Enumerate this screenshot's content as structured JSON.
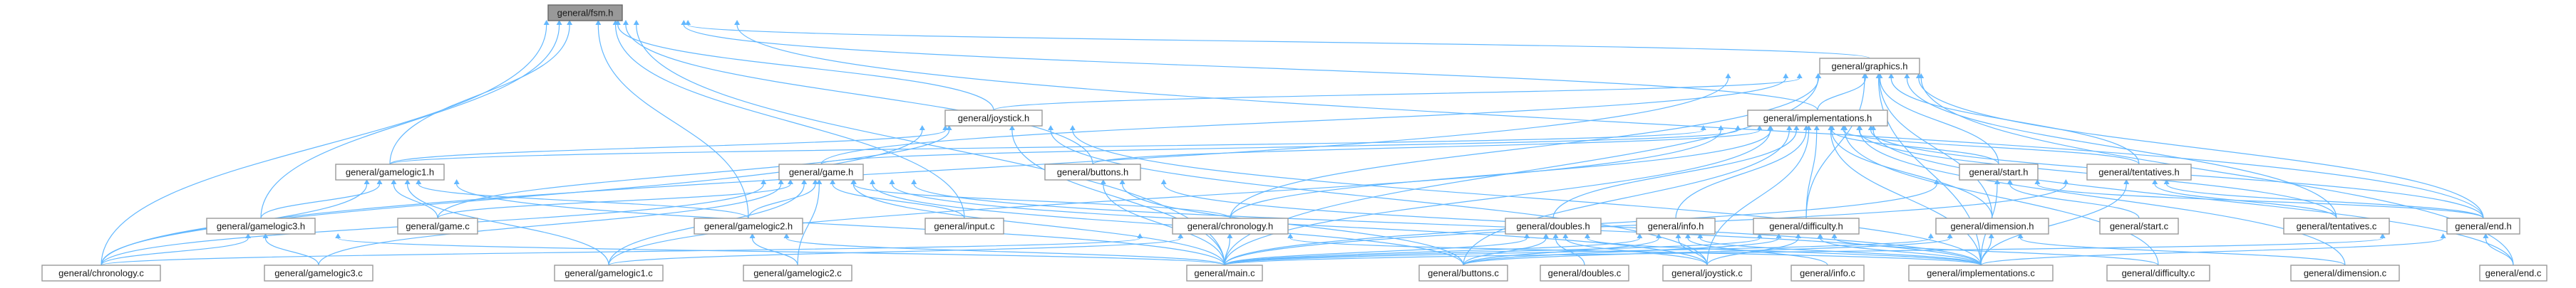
{
  "nodes": {
    "fsm_h": "general/fsm.h",
    "graphics_h": "general/graphics.h",
    "joystick_h": "general/joystick.h",
    "implementations_h": "general/implementations.h",
    "gamelogic1_h": "general/gamelogic1.h",
    "game_h": "general/game.h",
    "buttons_h": "general/buttons.h",
    "start_h": "general/start.h",
    "tentatives_h": "general/tentatives.h",
    "gamelogic3_h": "general/gamelogic3.h",
    "game_c": "general/game.c",
    "gamelogic2_h": "general/gamelogic2.h",
    "input_c": "general/input.c",
    "chronology_h": "general/chronology.h",
    "doubles_h": "general/doubles.h",
    "info_h": "general/info.h",
    "difficulty_h": "general/difficulty.h",
    "dimension_h": "general/dimension.h",
    "start_c": "general/start.c",
    "tentatives_c": "general/tentatives.c",
    "end_h": "general/end.h",
    "chronology_c": "general/chronology.c",
    "gamelogic3_c": "general/gamelogic3.c",
    "gamelogic1_c": "general/gamelogic1.c",
    "gamelogic2_c": "general/gamelogic2.c",
    "main_c": "general/main.c",
    "buttons_c": "general/buttons.c",
    "doubles_c": "general/doubles.c",
    "joystick_c": "general/joystick.c",
    "info_c": "general/info.c",
    "implementations_c": "general/implementations.c",
    "difficulty_c": "general/difficulty.c",
    "dimension_c": "general/dimension.c",
    "end_c": "general/end.c"
  },
  "edges": [
    [
      "graphics_h",
      "fsm_h"
    ],
    [
      "joystick_h",
      "fsm_h"
    ],
    [
      "implementations_h",
      "fsm_h"
    ],
    [
      "gamelogic1_h",
      "fsm_h"
    ],
    [
      "buttons_h",
      "fsm_h"
    ],
    [
      "gamelogic3_h",
      "fsm_h"
    ],
    [
      "gamelogic2_h",
      "fsm_h"
    ],
    [
      "input_c",
      "fsm_h"
    ],
    [
      "chronology_c",
      "fsm_h"
    ],
    [
      "main_c",
      "fsm_h"
    ],
    [
      "end_h",
      "fsm_h"
    ],
    [
      "joystick_h",
      "graphics_h"
    ],
    [
      "implementations_h",
      "graphics_h"
    ],
    [
      "game_h",
      "graphics_h"
    ],
    [
      "start_h",
      "graphics_h"
    ],
    [
      "tentatives_h",
      "graphics_h"
    ],
    [
      "chronology_h",
      "graphics_h"
    ],
    [
      "dimension_h",
      "graphics_h"
    ],
    [
      "end_h",
      "graphics_h"
    ],
    [
      "chronology_c",
      "graphics_h"
    ],
    [
      "main_c",
      "graphics_h"
    ],
    [
      "tentatives_c",
      "graphics_h"
    ],
    [
      "implementations_c",
      "graphics_h"
    ],
    [
      "end_c",
      "graphics_h"
    ],
    [
      "difficulty_h",
      "graphics_h"
    ],
    [
      "gamelogic1_h",
      "joystick_h"
    ],
    [
      "chronology_c",
      "joystick_h"
    ],
    [
      "joystick_c",
      "joystick_h"
    ],
    [
      "main_c",
      "joystick_h"
    ],
    [
      "game_c",
      "joystick_h"
    ],
    [
      "implementations_c",
      "joystick_h"
    ],
    [
      "gamelogic1_h",
      "implementations_h"
    ],
    [
      "game_h",
      "implementations_h"
    ],
    [
      "buttons_h",
      "implementations_h"
    ],
    [
      "start_h",
      "implementations_h"
    ],
    [
      "tentatives_h",
      "implementations_h"
    ],
    [
      "chronology_h",
      "implementations_h"
    ],
    [
      "doubles_h",
      "implementations_h"
    ],
    [
      "info_h",
      "implementations_h"
    ],
    [
      "difficulty_h",
      "implementations_h"
    ],
    [
      "dimension_h",
      "implementations_h"
    ],
    [
      "end_h",
      "implementations_h"
    ],
    [
      "gamelogic1_c",
      "implementations_h"
    ],
    [
      "main_c",
      "implementations_h"
    ],
    [
      "buttons_c",
      "implementations_h"
    ],
    [
      "implementations_c",
      "implementations_h"
    ],
    [
      "tentatives_c",
      "implementations_h"
    ],
    [
      "end_c",
      "implementations_h"
    ],
    [
      "difficulty_c",
      "implementations_h"
    ],
    [
      "dimension_c",
      "implementations_h"
    ],
    [
      "joystick_c",
      "implementations_h"
    ],
    [
      "gamelogic3_h",
      "gamelogic1_h"
    ],
    [
      "game_c",
      "gamelogic1_h"
    ],
    [
      "gamelogic2_h",
      "gamelogic1_h"
    ],
    [
      "chronology_c",
      "gamelogic1_h"
    ],
    [
      "gamelogic1_c",
      "gamelogic1_h"
    ],
    [
      "main_c",
      "gamelogic1_h"
    ],
    [
      "game_c",
      "game_h"
    ],
    [
      "gamelogic2_h",
      "game_h"
    ],
    [
      "input_c",
      "game_h"
    ],
    [
      "chronology_h",
      "game_h"
    ],
    [
      "chronology_c",
      "game_h"
    ],
    [
      "gamelogic3_c",
      "game_h"
    ],
    [
      "gamelogic1_c",
      "game_h"
    ],
    [
      "gamelogic2_c",
      "game_h"
    ],
    [
      "main_c",
      "game_h"
    ],
    [
      "buttons_c",
      "game_h"
    ],
    [
      "joystick_c",
      "game_h"
    ],
    [
      "implementations_c",
      "game_h"
    ],
    [
      "main_c",
      "buttons_h"
    ],
    [
      "buttons_c",
      "buttons_h"
    ],
    [
      "implementations_c",
      "buttons_h"
    ],
    [
      "start_c",
      "start_h"
    ],
    [
      "main_c",
      "start_h"
    ],
    [
      "implementations_c",
      "start_h"
    ],
    [
      "end_h",
      "start_h"
    ],
    [
      "tentatives_c",
      "tentatives_h"
    ],
    [
      "main_c",
      "tentatives_h"
    ],
    [
      "implementations_c",
      "tentatives_h"
    ],
    [
      "end_h",
      "tentatives_h"
    ],
    [
      "chronology_c",
      "gamelogic3_h"
    ],
    [
      "gamelogic3_c",
      "gamelogic3_h"
    ],
    [
      "main_c",
      "gamelogic3_h"
    ],
    [
      "gamelogic2_c",
      "gamelogic2_h"
    ],
    [
      "main_c",
      "gamelogic2_h"
    ],
    [
      "chronology_c",
      "chronology_h"
    ],
    [
      "main_c",
      "chronology_h"
    ],
    [
      "implementations_c",
      "chronology_h"
    ],
    [
      "gamelogic1_c",
      "chronology_h"
    ],
    [
      "doubles_c",
      "doubles_h"
    ],
    [
      "main_c",
      "doubles_h"
    ],
    [
      "buttons_c",
      "doubles_h"
    ],
    [
      "joystick_c",
      "doubles_h"
    ],
    [
      "implementations_c",
      "doubles_h"
    ],
    [
      "info_c",
      "info_h"
    ],
    [
      "main_c",
      "info_h"
    ],
    [
      "buttons_c",
      "info_h"
    ],
    [
      "joystick_c",
      "info_h"
    ],
    [
      "implementations_c",
      "info_h"
    ],
    [
      "difficulty_c",
      "difficulty_h"
    ],
    [
      "main_c",
      "difficulty_h"
    ],
    [
      "buttons_c",
      "difficulty_h"
    ],
    [
      "joystick_c",
      "difficulty_h"
    ],
    [
      "implementations_c",
      "difficulty_h"
    ],
    [
      "dimension_c",
      "dimension_h"
    ],
    [
      "main_c",
      "dimension_h"
    ],
    [
      "buttons_c",
      "dimension_h"
    ],
    [
      "implementations_c",
      "dimension_h"
    ],
    [
      "end_c",
      "end_h"
    ],
    [
      "main_c",
      "end_h"
    ],
    [
      "implementations_c",
      "end_h"
    ]
  ],
  "colors": {
    "edge": "#63b8ff",
    "node_border": "#999999",
    "root_fill": "#999999"
  }
}
